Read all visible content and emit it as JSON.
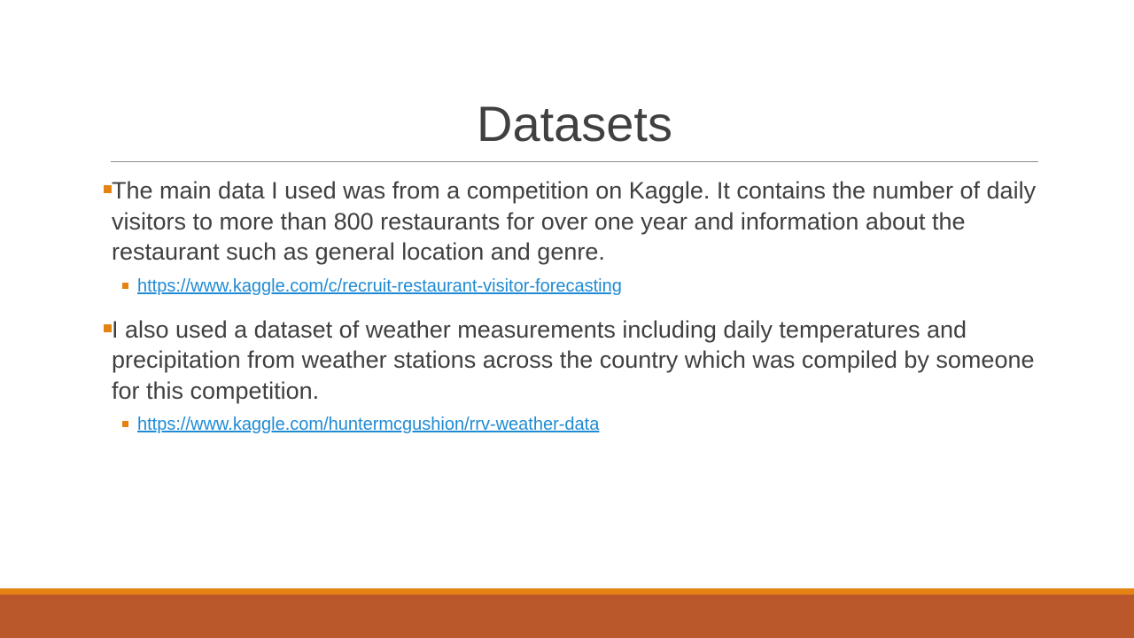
{
  "slide": {
    "title": "Datasets",
    "bullets": [
      {
        "text": "The main data I used was from a competition on Kaggle. It contains the number of daily visitors to more than 800 restaurants for over one year and information about the restaurant such as general location and genre.",
        "link": "https://www.kaggle.com/c/recruit-restaurant-visitor-forecasting"
      },
      {
        "text": "I also used a dataset of weather measurements including daily temperatures and precipitation from weather stations across the country which was compiled by someone for this competition.",
        "link": "https://www.kaggle.com/huntermcgushion/rrv-weather-data"
      }
    ]
  },
  "colors": {
    "accent": "#e48312",
    "footer": "#bb582b",
    "link": "#1f8bd4",
    "text": "#404040"
  }
}
